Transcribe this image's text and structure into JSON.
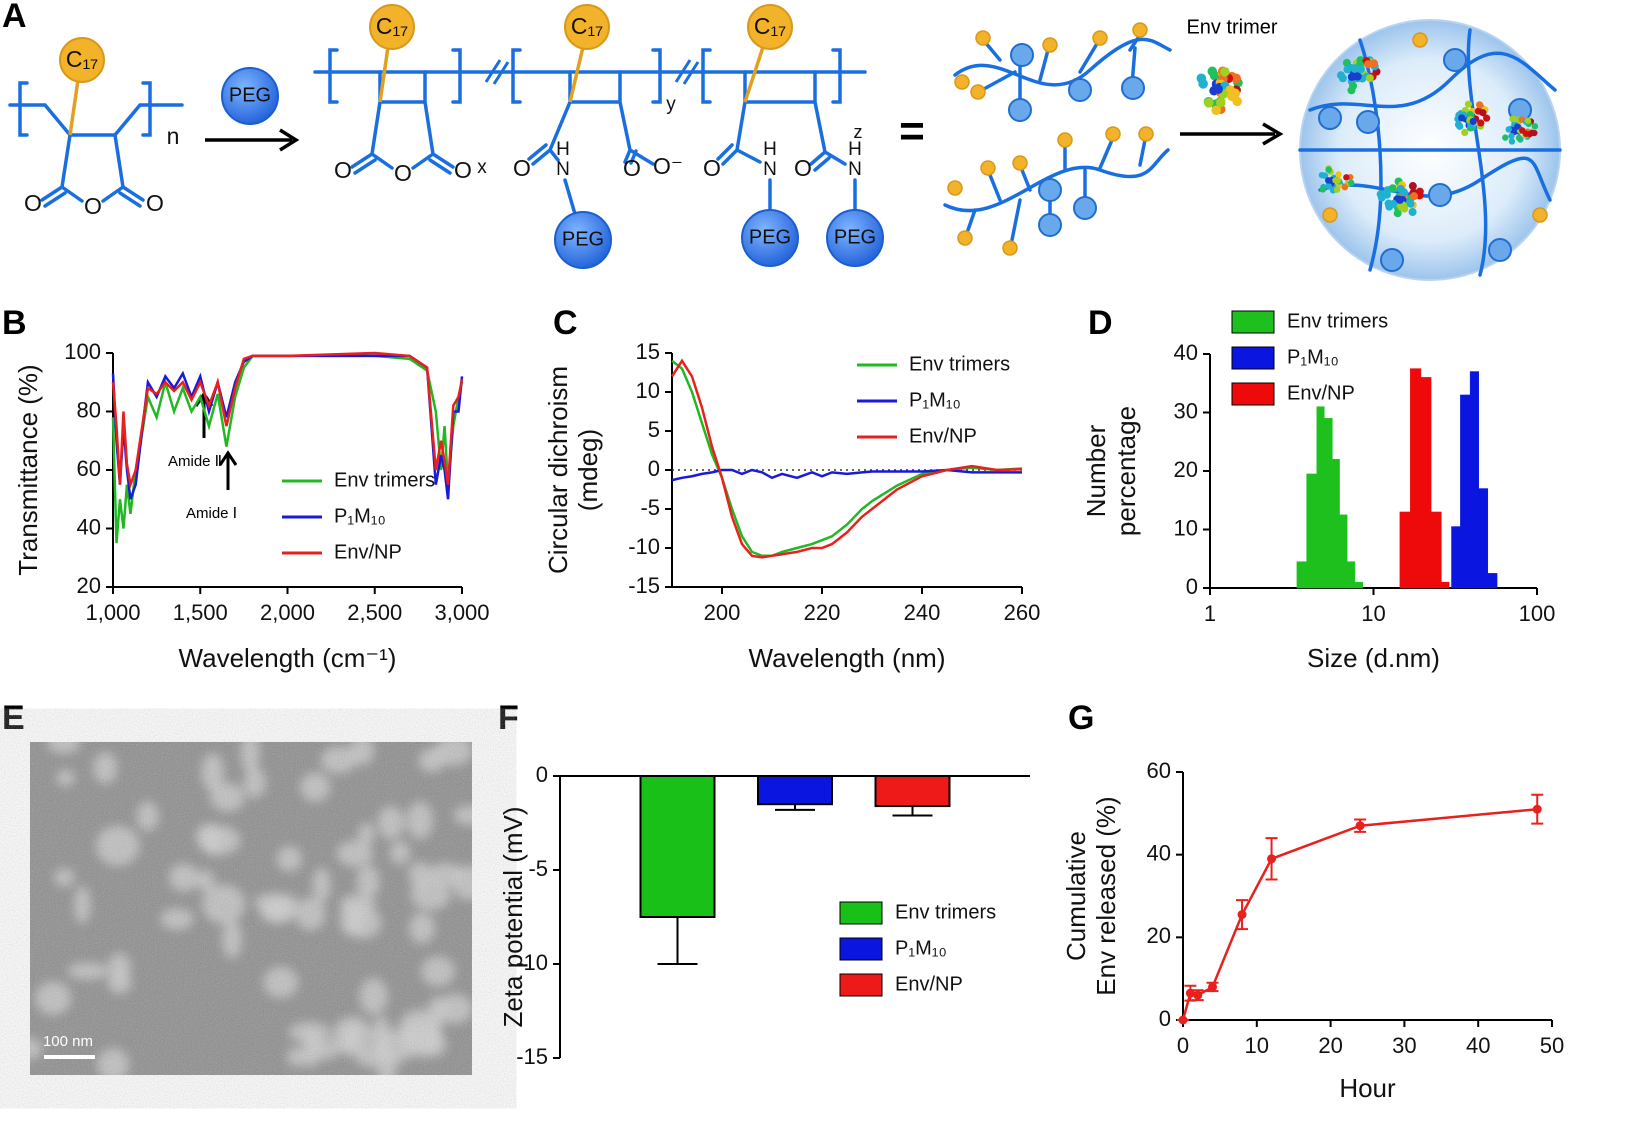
{
  "panel_labels": [
    "A",
    "B",
    "C",
    "D",
    "E",
    "F",
    "G"
  ],
  "scheme": {
    "c17": "C₁₇",
    "peg": "PEG",
    "n": "n",
    "x": "x",
    "y": "y",
    "z": "z",
    "o": "O",
    "h": "H",
    "nitrogen": "N",
    "o_minus": "O⁻",
    "equals": "=",
    "env_trimer": "Env trimer"
  },
  "micrograph": {
    "scale_bar": "100 nm"
  },
  "annotations": [
    "Amide Ⅱ",
    "Amide Ⅰ"
  ],
  "chart_data": [
    {
      "type": "line",
      "ylabel": "Transmittance (%)",
      "xlabel": "Wavelength (cm⁻¹)",
      "x": [
        1000,
        1020,
        1040,
        1060,
        1080,
        1100,
        1130,
        1160,
        1200,
        1250,
        1300,
        1350,
        1400,
        1450,
        1500,
        1550,
        1600,
        1650,
        1700,
        1750,
        1800,
        2000,
        2500,
        2700,
        2800,
        2850,
        2880,
        2900,
        2920,
        2950,
        2980,
        3000
      ],
      "series": [
        {
          "name": "Env trimers",
          "color": "#22b822",
          "values": [
            78,
            35,
            50,
            40,
            55,
            45,
            60,
            70,
            85,
            78,
            90,
            80,
            88,
            80,
            85,
            75,
            86,
            68,
            85,
            95,
            99,
            99,
            99,
            98,
            94,
            80,
            60,
            75,
            55,
            75,
            85,
            90
          ]
        },
        {
          "name": "P₁M₁₀",
          "color": "#1a1adb",
          "values": [
            93,
            70,
            55,
            75,
            60,
            50,
            55,
            70,
            90,
            85,
            92,
            88,
            93,
            85,
            92,
            80,
            90,
            78,
            90,
            97,
            99,
            99,
            99,
            99,
            95,
            55,
            65,
            60,
            50,
            80,
            80,
            92
          ]
        },
        {
          "name": "Env/NP",
          "color": "#e8201e",
          "values": [
            90,
            75,
            55,
            80,
            62,
            55,
            60,
            72,
            88,
            86,
            90,
            87,
            90,
            84,
            90,
            82,
            90,
            75,
            88,
            98,
            99,
            99,
            100,
            99,
            95,
            60,
            70,
            63,
            55,
            82,
            85,
            91
          ]
        }
      ],
      "xlim": [
        1000,
        3000
      ],
      "xticks": [
        {
          "value": 1000,
          "label": "1,000"
        },
        {
          "value": 1500,
          "label": "1,500"
        },
        {
          "value": 2000,
          "label": "2,000"
        },
        {
          "value": 2500,
          "label": "2,500"
        },
        {
          "value": 3000,
          "label": "3,000"
        }
      ],
      "ylim": [
        20,
        100
      ],
      "yticks": [
        20,
        40,
        60,
        80,
        100
      ],
      "legend": "lower right"
    },
    {
      "type": "line",
      "ylabel": [
        "Circular dichroism",
        "(mdeg)"
      ],
      "xlabel": "Wavelength (nm)",
      "x": [
        190,
        192,
        194,
        196,
        198,
        200,
        202,
        204,
        206,
        208,
        210,
        212,
        215,
        218,
        220,
        222,
        225,
        228,
        230,
        235,
        240,
        245,
        250,
        255,
        260
      ],
      "series": [
        {
          "name": "Env trimers",
          "color": "#22b822",
          "values": [
            14,
            13,
            10,
            6,
            2,
            -1,
            -5,
            -8.5,
            -10.5,
            -11,
            -11,
            -10.5,
            -10,
            -9.5,
            -9,
            -8.5,
            -7,
            -5,
            -4,
            -2,
            -0.5,
            0,
            0.3,
            0,
            0.2
          ]
        },
        {
          "name": "P₁M₁₀",
          "color": "#1a1adb",
          "values": [
            -1.3,
            -1,
            -0.8,
            -0.5,
            -0.3,
            0,
            0,
            -0.5,
            0,
            -0.3,
            -1,
            -0.5,
            -1,
            -0.3,
            -0.8,
            -0.3,
            -0.5,
            -0.3,
            -0.2,
            -0.2,
            -0.2,
            0,
            -0.3,
            -0.3,
            -0.3
          ]
        },
        {
          "name": "Env/NP",
          "color": "#e8201e",
          "values": [
            12,
            14,
            12,
            8,
            3,
            -1,
            -6,
            -9.5,
            -11,
            -11.2,
            -11,
            -10.8,
            -10.5,
            -10,
            -10,
            -9.5,
            -8,
            -6,
            -5,
            -2.5,
            -0.8,
            0,
            0.5,
            0,
            0.1
          ]
        }
      ],
      "xlim": [
        190,
        260
      ],
      "xticks": [
        200,
        220,
        240,
        260
      ],
      "ylim": [
        -15,
        15
      ],
      "yticks": [
        -15,
        -10,
        -5,
        0,
        5,
        10,
        15
      ],
      "zero_line": true,
      "legend": "upper right"
    },
    {
      "type": "histogram",
      "ylabel": [
        "Number",
        "percentage"
      ],
      "xlabel": "Size (d.nm)",
      "xlog": true,
      "series": [
        {
          "name": "Env trimers",
          "color": "#1ec01e",
          "bins": [
            3.4,
            3.9,
            4.5,
            5.0,
            5.6,
            6.2,
            6.9,
            7.7,
            8.6
          ],
          "values": [
            4.5,
            19.5,
            31,
            29,
            22,
            12.5,
            4.5,
            1
          ]
        },
        {
          "name": "P₁M₁₀",
          "color": "#0a16e0",
          "bins": [
            30,
            34,
            39,
            44,
            50,
            57
          ],
          "values": [
            10.5,
            33,
            37,
            17,
            2.5
          ]
        },
        {
          "name": "Env/NP",
          "color": "#ee0a0a",
          "bins": [
            14.5,
            16.8,
            19.5,
            22.5,
            26,
            29
          ],
          "values": [
            13,
            37.5,
            36,
            13,
            1
          ]
        }
      ],
      "xlim": [
        1,
        100
      ],
      "xticks": [
        1,
        10,
        100
      ],
      "ylim": [
        0,
        40
      ],
      "yticks": [
        0,
        10,
        20,
        30,
        40
      ],
      "legend": "upper left"
    },
    {
      "type": "bar",
      "ylabel": "Zeta potential (mV)",
      "categories": [
        null
      ],
      "series": [
        {
          "name": "Env trimers",
          "color": "#18c018",
          "values": [
            -7.5
          ],
          "errors": [
            2.5
          ]
        },
        {
          "name": "P₁M₁₀",
          "color": "#0a16e0",
          "values": [
            -1.5
          ],
          "errors": [
            0.3
          ]
        },
        {
          "name": "Env/NP",
          "color": "#ee1a1a",
          "values": [
            -1.6
          ],
          "errors": [
            0.5
          ]
        }
      ],
      "ylim": [
        -15,
        0
      ],
      "yticks": [
        0,
        -5,
        -10,
        -15
      ],
      "legend": "center right"
    },
    {
      "type": "line",
      "ylabel": [
        "Cumulative",
        "Env released (%)"
      ],
      "xlabel": "Hour",
      "x": [
        0,
        1,
        2,
        4,
        8,
        12,
        24,
        48
      ],
      "series": [
        {
          "name": null,
          "color": "#e8201e",
          "values": [
            0,
            6.5,
            6,
            8,
            25.5,
            39,
            47,
            51
          ],
          "errors": [
            0,
            1.8,
            1.2,
            1,
            3.5,
            5,
            1.5,
            3.5
          ]
        }
      ],
      "xlim": [
        0,
        50
      ],
      "xticks": [
        0,
        10,
        20,
        30,
        40,
        50
      ],
      "ylim": [
        0,
        60
      ],
      "yticks": [
        0,
        20,
        40,
        60
      ],
      "markers": true
    }
  ]
}
